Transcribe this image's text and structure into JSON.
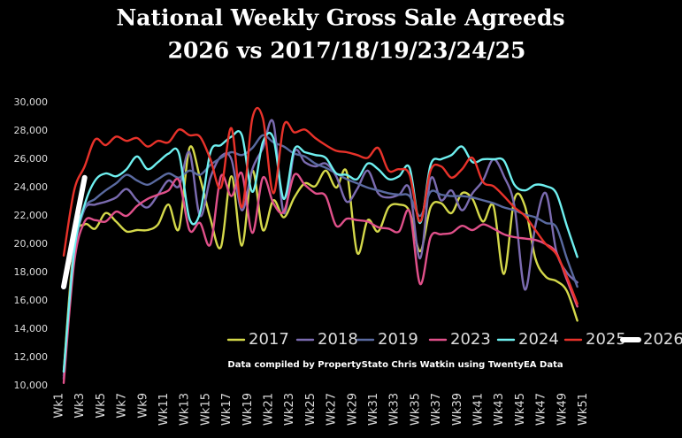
{
  "chart_data": {
    "type": "line",
    "title": "National Weekly Gross Sale Agreeds",
    "subtitle": "2026 vs 2017/18/19/23/24/25",
    "annotation": "Data compiled by PropertyStato Chris Watkin using TwentyEA Data",
    "categories": [
      "Wk1",
      null,
      "Wk3",
      null,
      "Wk5",
      null,
      "Wk7",
      null,
      "Wk9",
      null,
      "Wk11",
      null,
      "Wk13",
      null,
      "Wk15",
      null,
      "Wk17",
      null,
      "Wk19",
      null,
      "Wk21",
      null,
      "Wk23",
      null,
      "Wk25",
      null,
      "Wk27",
      null,
      "Wk29",
      null,
      "Wk31",
      null,
      "Wk33",
      null,
      "Wk35",
      null,
      "Wk37",
      null,
      "Wk39",
      null,
      "Wk41",
      null,
      "Wk43",
      null,
      "Wk45",
      null,
      "Wk47",
      null,
      "Wk49",
      null,
      "Wk51"
    ],
    "ylim": [
      10000,
      30000
    ],
    "yticks": [
      {
        "value": 10000,
        "label": "10,000"
      },
      {
        "value": 12000,
        "label": "12,000"
      },
      {
        "value": 14000,
        "label": "14,000"
      },
      {
        "value": 16000,
        "label": "16,000"
      },
      {
        "value": 18000,
        "label": "18,000"
      },
      {
        "value": 20000,
        "label": "20,000"
      },
      {
        "value": 22000,
        "label": "22,000"
      },
      {
        "value": 24000,
        "label": "24,000"
      },
      {
        "value": 26000,
        "label": "26,000"
      },
      {
        "value": 28000,
        "label": "28,000"
      },
      {
        "value": 30000,
        "label": "30,000"
      }
    ],
    "grid": false,
    "legend": "bottom",
    "series": [
      {
        "name": "2017",
        "color": "#d4d84a",
        "values": [
          11000,
          20000,
          21400,
          21100,
          22200,
          21600,
          20900,
          21000,
          21000,
          21400,
          22800,
          21100,
          26800,
          24700,
          21800,
          19800,
          24800,
          19900,
          25200,
          21000,
          23100,
          21900,
          23300,
          24300,
          24100,
          25200,
          24000,
          25100,
          19400,
          21700,
          20900,
          22600,
          22800,
          22300,
          19500,
          22600,
          22900,
          22200,
          23600,
          23200,
          21600,
          22700,
          17900,
          23200,
          22700,
          19000,
          17700,
          17400,
          16700,
          14600,
          null
        ]
      },
      {
        "name": "2018",
        "color": "#7b6bb0",
        "values": [
          10500,
          19800,
          22500,
          22800,
          23000,
          23300,
          23900,
          23100,
          22600,
          23500,
          24500,
          24100,
          26500,
          22000,
          24700,
          26200,
          26000,
          22400,
          25300,
          26800,
          28600,
          22200,
          26500,
          25800,
          25500,
          25700,
          24800,
          23000,
          23900,
          25200,
          23600,
          23300,
          23500,
          23900,
          19000,
          24600,
          23100,
          23800,
          22400,
          23600,
          24500,
          26000,
          24800,
          22700,
          16800,
          21300,
          23600,
          19500,
          18000,
          17300,
          null
        ]
      },
      {
        "name": "2019",
        "color": "#5a6aa0",
        "values": [
          10700,
          19300,
          22500,
          23200,
          23800,
          24300,
          24900,
          24500,
          24200,
          24600,
          25000,
          24700,
          25200,
          24900,
          25600,
          26100,
          26500,
          26300,
          26800,
          27700,
          27200,
          26900,
          26400,
          26200,
          25700,
          25400,
          25000,
          24600,
          24300,
          24000,
          23800,
          23600,
          23500,
          23400,
          22000,
          23700,
          23500,
          23400,
          23400,
          23300,
          23100,
          22900,
          22600,
          22400,
          22100,
          21900,
          21500,
          21200,
          19000,
          17000,
          null
        ]
      },
      {
        "name": "2023",
        "color": "#e0508a",
        "values": [
          10200,
          18700,
          21600,
          21700,
          21600,
          22300,
          22000,
          22700,
          23200,
          23500,
          23800,
          24500,
          21000,
          21500,
          20000,
          24800,
          23400,
          25000,
          20800,
          24700,
          22900,
          22300,
          24900,
          24200,
          23600,
          23400,
          21300,
          21800,
          21700,
          21600,
          21200,
          21100,
          20900,
          22300,
          17200,
          20500,
          20700,
          20800,
          21300,
          21000,
          21400,
          21100,
          20700,
          20500,
          20400,
          20300,
          20000,
          19400,
          17500,
          15600,
          null
        ]
      },
      {
        "name": "2024",
        "color": "#6ff0f0",
        "values": [
          11000,
          19500,
          22800,
          24500,
          25000,
          24800,
          25300,
          26200,
          25300,
          25800,
          26400,
          26400,
          21800,
          22200,
          26500,
          27000,
          27600,
          27700,
          23700,
          27200,
          27500,
          23200,
          26700,
          26500,
          26300,
          26100,
          25000,
          24900,
          24600,
          25700,
          25300,
          24600,
          24800,
          25400,
          21500,
          25600,
          26000,
          26300,
          26900,
          25800,
          26000,
          26000,
          25900,
          24200,
          23800,
          24200,
          24100,
          23600,
          21300,
          19100,
          null
        ]
      },
      {
        "name": "2025",
        "color": "#e8322a",
        "values": [
          19200,
          23800,
          25500,
          27400,
          27000,
          27600,
          27300,
          27500,
          26900,
          27300,
          27200,
          28100,
          27700,
          27600,
          26000,
          24000,
          28200,
          22600,
          28900,
          28900,
          23600,
          28400,
          27900,
          28100,
          27500,
          27000,
          26600,
          26500,
          26300,
          26100,
          26800,
          25200,
          25300,
          24900,
          21600,
          25200,
          25500,
          24700,
          25300,
          26100,
          24400,
          24100,
          23400,
          22600,
          22000,
          21000,
          20000,
          19300,
          17700,
          15800,
          null
        ]
      },
      {
        "name": "2026",
        "color": "#ffffff",
        "values": [
          17000,
          20900,
          24700,
          null,
          null,
          null,
          null,
          null,
          null,
          null,
          null,
          null,
          null,
          null,
          null,
          null,
          null,
          null,
          null,
          null,
          null,
          null,
          null,
          null,
          null,
          null,
          null,
          null,
          null,
          null,
          null,
          null,
          null,
          null,
          null,
          null,
          null,
          null,
          null,
          null,
          null,
          null,
          null,
          null,
          null,
          null,
          null,
          null,
          null,
          null,
          null
        ]
      }
    ]
  }
}
